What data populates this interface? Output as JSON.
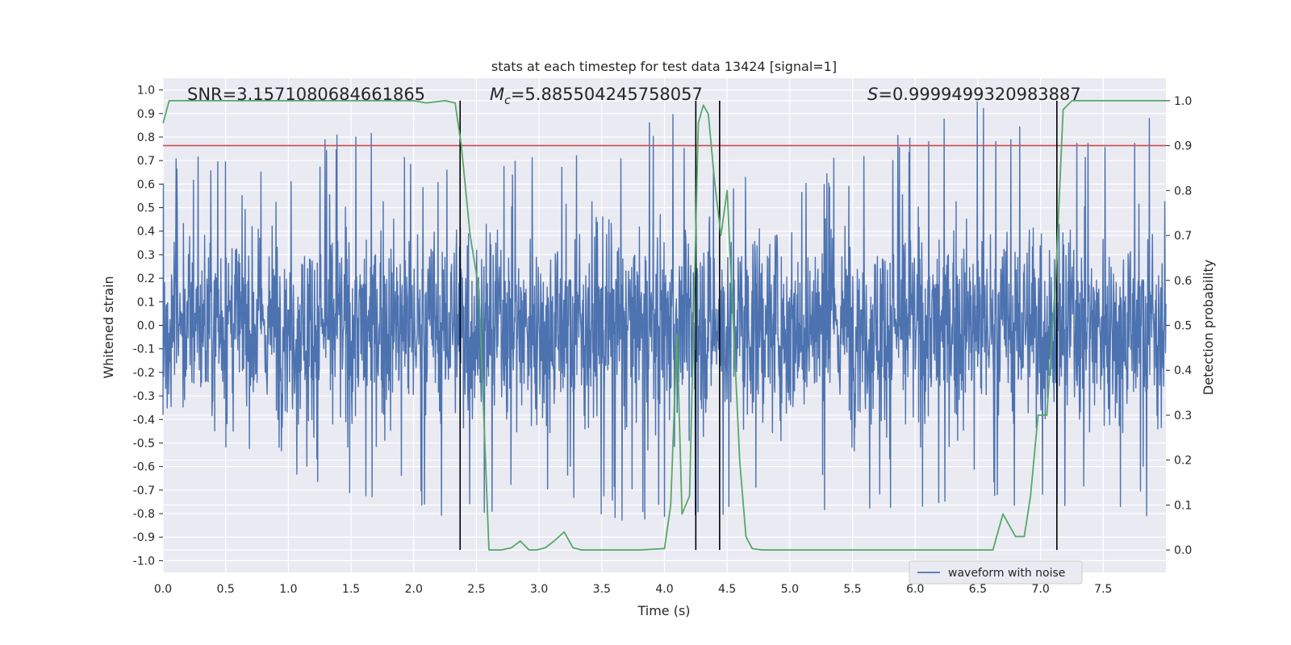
{
  "chart_data": {
    "type": "line",
    "title": "stats at each timestep for test data 13424 [signal=1]",
    "xlabel": "Time (s)",
    "ylabel_left": "Whitened strain",
    "ylabel_right": "Detection probability",
    "xlim": [
      0,
      8
    ],
    "ylim_left": [
      -1.05,
      1.05
    ],
    "ylim_right": [
      -0.05,
      1.05
    ],
    "x_ticks": [
      "0.0",
      "0.5",
      "1.0",
      "1.5",
      "2.0",
      "2.5",
      "3.0",
      "3.5",
      "4.0",
      "4.5",
      "5.0",
      "5.5",
      "6.0",
      "6.5",
      "7.0",
      "7.5"
    ],
    "y_ticks_left": [
      "1.0",
      "0.9",
      "0.8",
      "0.7",
      "0.6",
      "0.5",
      "0.4",
      "0.3",
      "0.2",
      "0.1",
      "0.0",
      "-0.1",
      "-0.2",
      "-0.3",
      "-0.4",
      "-0.5",
      "-0.6",
      "-0.7",
      "-0.8",
      "-0.9",
      "-1.0"
    ],
    "y_ticks_right": [
      "1.0",
      "0.9",
      "0.8",
      "0.7",
      "0.6",
      "0.5",
      "0.4",
      "0.3",
      "0.2",
      "0.1",
      "0.0"
    ],
    "grid": true,
    "legend_position": "bottom-right",
    "annotations": {
      "snr": "SNR=3.1571080684661865",
      "mc": "=5.885504245758057",
      "s": "=0.9999499320983887"
    },
    "series": [
      {
        "name": "waveform with noise",
        "axis": "left",
        "color": "#4c72b0",
        "note_envelope_upper": "dense noise waveform, typical amplitude ±0.45 with peaks up to ~1.0",
        "x": [
          0.0,
          0.5,
          1.0,
          1.5,
          2.0,
          2.5,
          3.0,
          3.5,
          4.0,
          4.5,
          5.0,
          5.5,
          6.0,
          6.5,
          7.0,
          7.5,
          8.0
        ],
        "y_max": [
          0.74,
          0.7,
          0.62,
          0.92,
          0.72,
          0.66,
          0.8,
          0.7,
          0.95,
          0.68,
          0.7,
          0.72,
          0.85,
          1.0,
          0.82,
          0.83,
          0.93
        ],
        "y_min": [
          -0.62,
          -0.6,
          -0.65,
          -0.72,
          -0.8,
          -0.85,
          -0.72,
          -0.84,
          -0.88,
          -0.8,
          -0.76,
          -0.82,
          -0.78,
          -0.75,
          -0.8,
          -0.78,
          -0.91
        ]
      },
      {
        "name": "Detection probability",
        "axis": "right",
        "color": "#55a868",
        "x": [
          0.0,
          0.05,
          0.1,
          0.3,
          0.5,
          1.0,
          1.5,
          2.0,
          2.1,
          2.25,
          2.33,
          2.38,
          2.45,
          2.52,
          2.6,
          2.7,
          2.78,
          2.85,
          2.92,
          2.98,
          3.05,
          3.12,
          3.2,
          3.27,
          3.34,
          3.4,
          3.6,
          3.8,
          4.0,
          4.05,
          4.1,
          4.14,
          4.2,
          4.27,
          4.31,
          4.35,
          4.4,
          4.45,
          4.5,
          4.55,
          4.6,
          4.65,
          4.7,
          4.78,
          4.85,
          5.0,
          5.3,
          5.6,
          6.0,
          6.2,
          6.35,
          6.5,
          6.62,
          6.7,
          6.8,
          6.87,
          6.92,
          6.98,
          7.05,
          7.12,
          7.18,
          7.25,
          7.4,
          7.7,
          8.0
        ],
        "y": [
          0.95,
          1.0,
          1.0,
          1.0,
          1.0,
          1.0,
          1.0,
          1.0,
          0.995,
          1.0,
          0.995,
          0.9,
          0.7,
          0.58,
          0.0,
          0.0,
          0.005,
          0.02,
          0.0,
          0.0,
          0.005,
          0.02,
          0.04,
          0.005,
          0.0,
          0.0,
          0.0,
          0.0,
          0.003,
          0.1,
          0.48,
          0.08,
          0.12,
          0.95,
          0.99,
          0.97,
          0.82,
          0.7,
          0.8,
          0.5,
          0.2,
          0.03,
          0.003,
          0.0,
          0.0,
          0.0,
          0.0,
          0.0,
          0.0,
          0.0,
          0.0,
          0.0,
          0.0,
          0.08,
          0.03,
          0.03,
          0.12,
          0.3,
          0.3,
          0.6,
          0.98,
          1.0,
          1.0,
          1.0,
          1.0
        ]
      }
    ],
    "threshold_line": {
      "axis": "right",
      "value": 0.9,
      "color": "#c44e52"
    },
    "vertical_lines_x": [
      2.37,
      4.25,
      4.44,
      7.13
    ]
  }
}
